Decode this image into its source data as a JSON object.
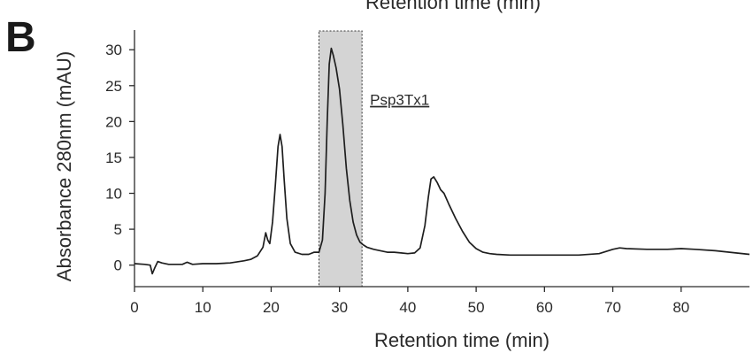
{
  "panel_label": "B",
  "top_cut_label": "Retention  time (min)",
  "chart_data": {
    "type": "line",
    "xlabel": "Retention time (min)",
    "ylabel": "Absorbance 280nm (mAU)",
    "xlim": [
      0,
      90
    ],
    "ylim": [
      -3,
      32
    ],
    "x_ticks": [
      0,
      10,
      20,
      30,
      40,
      50,
      60,
      70,
      80
    ],
    "y_ticks": [
      0,
      5,
      10,
      15,
      20,
      25,
      30
    ],
    "grid": false,
    "highlight": {
      "x_start": 27,
      "x_end": 33.3,
      "label": "Psp3Tx1"
    },
    "series": [
      {
        "x": [
          0,
          1.5,
          2.3,
          2.6,
          3.0,
          3.4,
          4,
          5,
          6,
          7,
          7.7,
          8.5,
          10,
          12,
          14,
          16,
          17,
          18,
          18.8,
          19.2,
          19.5,
          19.8,
          20.2,
          20.6,
          21.0,
          21.3,
          21.6,
          21.9,
          22.3,
          22.8,
          23.5,
          24.5,
          25.5,
          26.3,
          27.0,
          27.5,
          27.9,
          28.2,
          28.5,
          28.8,
          29.1,
          29.5,
          30.0,
          30.5,
          31.0,
          31.5,
          32.0,
          32.5,
          33.0,
          33.5,
          34,
          35,
          36,
          37,
          38,
          39,
          40,
          41,
          41.8,
          42.5,
          43.0,
          43.4,
          43.8,
          44.3,
          44.8,
          45.3,
          46,
          47,
          48,
          49,
          50,
          51,
          52,
          53,
          55,
          60,
          65,
          68,
          70,
          71,
          72,
          75,
          78,
          80,
          82,
          85,
          88,
          90
        ],
        "y": [
          0.2,
          0.1,
          0.0,
          -1.2,
          -0.3,
          0.5,
          0.3,
          0.1,
          0.1,
          0.1,
          0.4,
          0.1,
          0.2,
          0.2,
          0.3,
          0.6,
          0.8,
          1.3,
          2.5,
          4.5,
          3.5,
          3.0,
          6.0,
          11.0,
          16.5,
          18.2,
          16.5,
          12.0,
          6.5,
          3.0,
          1.8,
          1.5,
          1.5,
          1.8,
          1.8,
          3.5,
          10.0,
          20.0,
          28.0,
          30.2,
          29.2,
          27.5,
          24.5,
          19.5,
          13.5,
          9.0,
          6.0,
          4.2,
          3.2,
          2.8,
          2.5,
          2.2,
          2.0,
          1.8,
          1.8,
          1.7,
          1.6,
          1.7,
          2.4,
          5.5,
          9.5,
          12.0,
          12.3,
          11.5,
          10.5,
          10.0,
          8.5,
          6.5,
          4.7,
          3.2,
          2.3,
          1.8,
          1.6,
          1.5,
          1.4,
          1.4,
          1.4,
          1.6,
          2.2,
          2.4,
          2.3,
          2.2,
          2.2,
          2.3,
          2.2,
          2.0,
          1.7,
          1.5
        ]
      }
    ]
  }
}
